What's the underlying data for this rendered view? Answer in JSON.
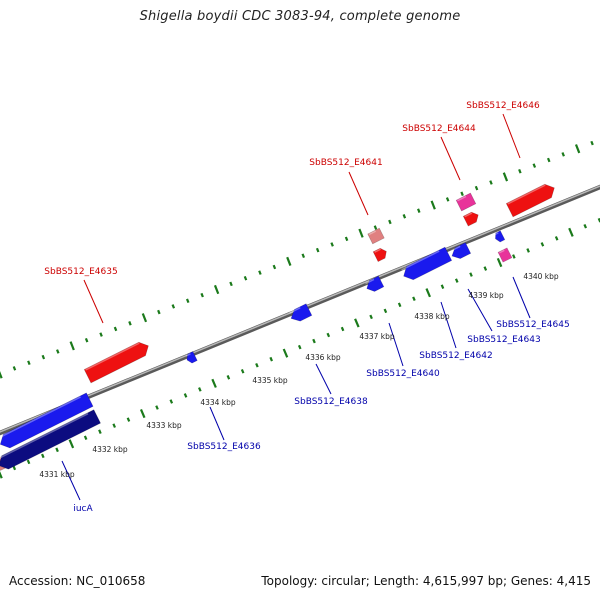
{
  "title": "Shigella boydii CDC 3083-94, complete genome",
  "footer": {
    "accession": "Accession: NC_010658",
    "summary": "Topology: circular; Length: 4,615,997 bp; Genes: 4,415"
  },
  "colors": {
    "forward_gene": "#ee1111",
    "forward_pink": "#e8339a",
    "forward_light": "#e08080",
    "reverse_gene": "#1a1aee",
    "reverse_dark": "#0c0c80",
    "backbone": "#7a7a7a",
    "tick": "#1b7a1b",
    "label_forward": "#cc0000",
    "label_reverse": "#0000aa"
  },
  "scale_labels": [
    "4331 kbp",
    "4332 kbp",
    "4333 kbp",
    "4334 kbp",
    "4335 kbp",
    "4336 kbp",
    "4337 kbp",
    "4338 kbp",
    "4339 kbp",
    "4340 kbp"
  ],
  "forward_labels": [
    "SbBS512_E4635",
    "SbBS512_E4641",
    "SbBS512_E4644",
    "SbBS512_E4646"
  ],
  "reverse_labels": [
    "iucA",
    "SbBS512_E4636",
    "SbBS512_E4638",
    "SbBS512_E4640",
    "SbBS512_E4642",
    "SbBS512_E4643",
    "SbBS512_E4645"
  ]
}
